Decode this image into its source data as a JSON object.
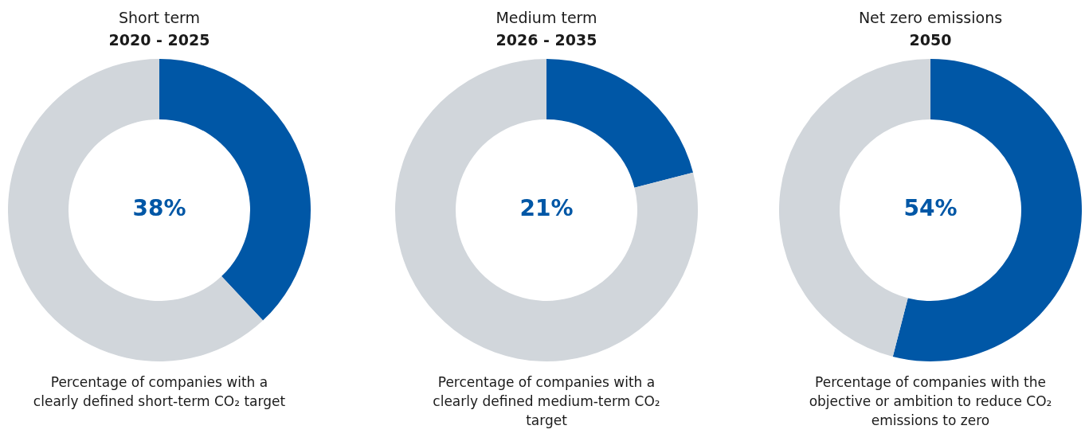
{
  "chart_data": [
    {
      "type": "donut",
      "title": "Short term",
      "subtitle": "2020 - 2025",
      "categories": [
        null,
        null
      ],
      "values": [
        38,
        62
      ],
      "colors": [
        "#0057a6",
        "#d1d6db"
      ],
      "value_labels": [
        "38%",
        null
      ],
      "annotations": [
        "Percentage of companies with a clearly defined short-term CO₂ target"
      ]
    },
    {
      "type": "donut",
      "title": "Medium term",
      "subtitle": "2026 - 2035",
      "categories": [
        null,
        null
      ],
      "values": [
        21,
        79
      ],
      "colors": [
        "#0057a6",
        "#d1d6db"
      ],
      "value_labels": [
        "21%",
        null
      ],
      "annotations": [
        "Percentage of companies with a clearly defined medium-term CO₂ target"
      ]
    },
    {
      "type": "donut",
      "title": "Net zero emissions",
      "subtitle": "2050",
      "categories": [
        null,
        null
      ],
      "values": [
        54,
        46
      ],
      "colors": [
        "#0057a6",
        "#d1d6db"
      ],
      "value_labels": [
        "54%",
        null
      ],
      "annotations": [
        "Percentage of companies with the objective or ambition to reduce CO₂ emissions to zero"
      ]
    }
  ]
}
